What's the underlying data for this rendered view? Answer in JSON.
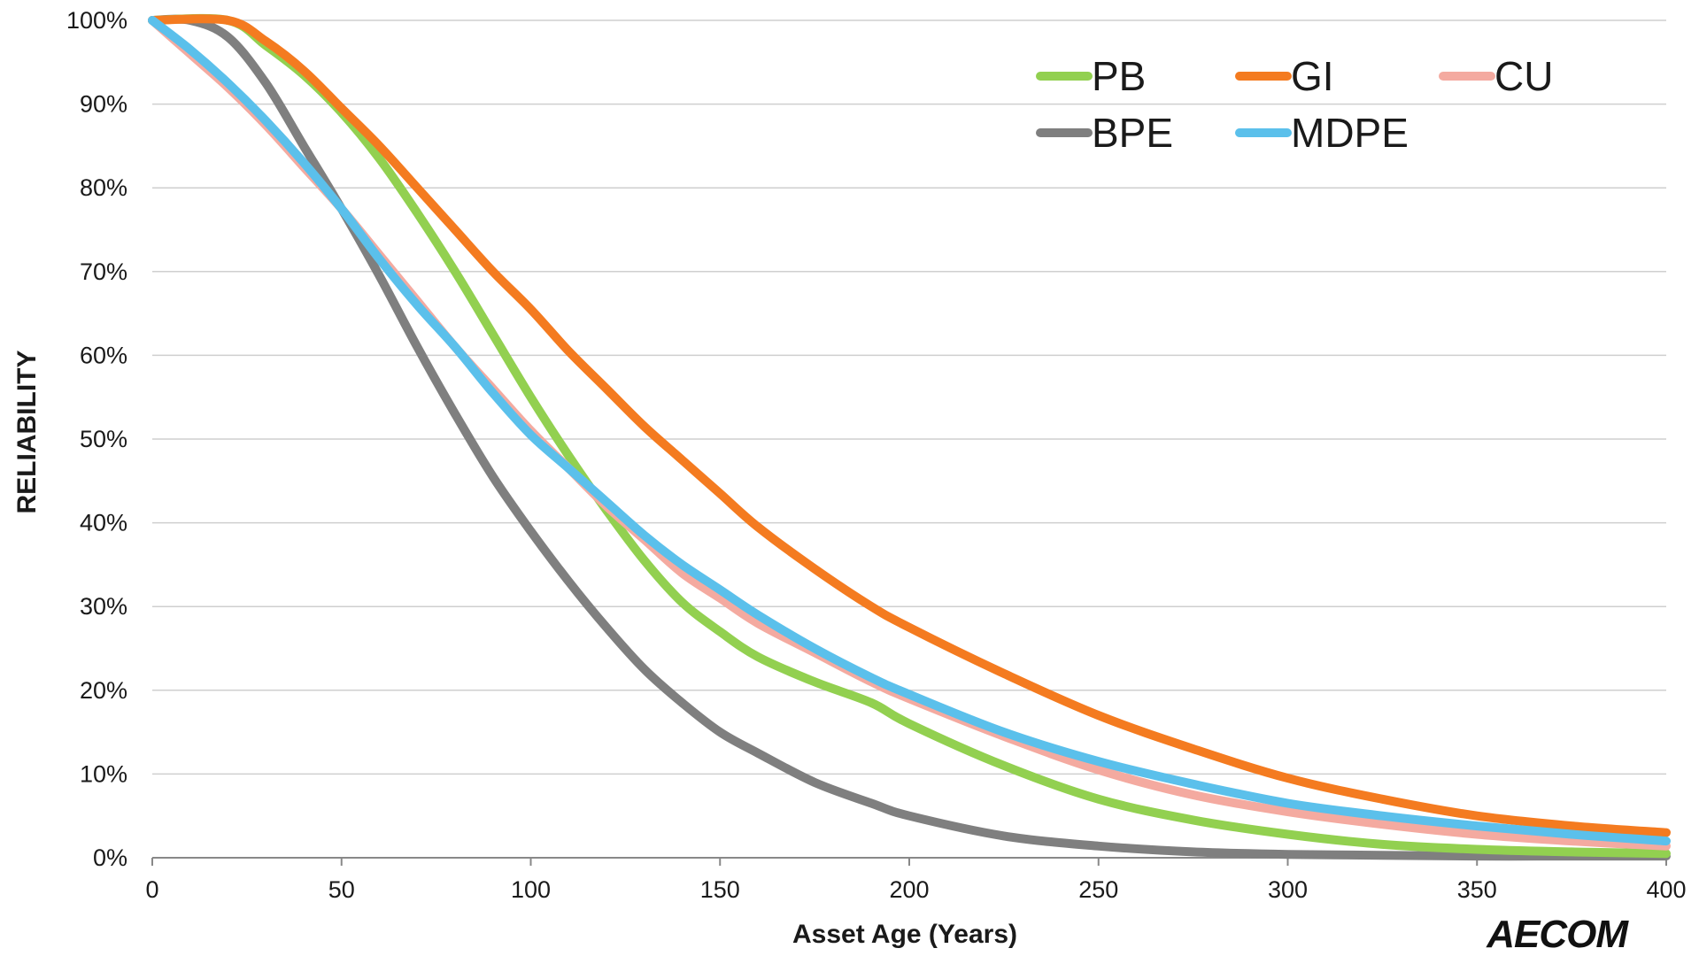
{
  "logo": {
    "text": "AECOM"
  },
  "chart_data": {
    "type": "line",
    "title": "",
    "xlabel": "Asset Age (Years)",
    "ylabel": "RELIABILITY",
    "xlim": [
      0,
      400
    ],
    "ylim": [
      0,
      100
    ],
    "x_ticks": [
      0,
      50,
      100,
      150,
      200,
      250,
      300,
      350,
      400
    ],
    "x_tick_labels": [
      "0",
      "50",
      "100",
      "150",
      "200",
      "250",
      "300",
      "350",
      "400"
    ],
    "y_ticks": [
      0,
      10,
      20,
      30,
      40,
      50,
      60,
      70,
      80,
      90,
      100
    ],
    "y_tick_labels": [
      "0%",
      "10%",
      "20%",
      "30%",
      "40%",
      "50%",
      "60%",
      "70%",
      "80%",
      "90%",
      "100%"
    ],
    "grid": "horizontal",
    "legend_position": "top-right",
    "series": [
      {
        "name": "PB",
        "color": "#92d050",
        "points": [
          [
            0,
            100
          ],
          [
            20,
            100
          ],
          [
            30,
            97
          ],
          [
            40,
            93.5
          ],
          [
            50,
            89
          ],
          [
            60,
            83.5
          ],
          [
            70,
            77
          ],
          [
            80,
            70
          ],
          [
            90,
            62.5
          ],
          [
            100,
            55
          ],
          [
            110,
            48
          ],
          [
            120,
            41.5
          ],
          [
            130,
            35.5
          ],
          [
            140,
            30.5
          ],
          [
            150,
            27
          ],
          [
            160,
            24
          ],
          [
            175,
            21
          ],
          [
            190,
            18.5
          ],
          [
            200,
            16
          ],
          [
            225,
            11
          ],
          [
            250,
            7
          ],
          [
            275,
            4.5
          ],
          [
            300,
            2.8
          ],
          [
            325,
            1.6
          ],
          [
            350,
            1
          ],
          [
            375,
            0.7
          ],
          [
            400,
            0.5
          ]
        ]
      },
      {
        "name": "GI",
        "color": "#f47b20",
        "points": [
          [
            0,
            100
          ],
          [
            20,
            100
          ],
          [
            30,
            97.5
          ],
          [
            40,
            94
          ],
          [
            50,
            89.5
          ],
          [
            60,
            85
          ],
          [
            70,
            80
          ],
          [
            80,
            75
          ],
          [
            90,
            70
          ],
          [
            100,
            65.5
          ],
          [
            110,
            60.5
          ],
          [
            120,
            56
          ],
          [
            130,
            51.5
          ],
          [
            140,
            47.5
          ],
          [
            150,
            43.5
          ],
          [
            160,
            39.5
          ],
          [
            175,
            34.5
          ],
          [
            190,
            30
          ],
          [
            200,
            27.5
          ],
          [
            225,
            22
          ],
          [
            250,
            17
          ],
          [
            275,
            13
          ],
          [
            300,
            9.5
          ],
          [
            325,
            7
          ],
          [
            350,
            5
          ],
          [
            375,
            3.8
          ],
          [
            400,
            3
          ]
        ]
      },
      {
        "name": "CU",
        "color": "#f4aaa0",
        "points": [
          [
            0,
            100
          ],
          [
            10,
            96
          ],
          [
            20,
            92
          ],
          [
            30,
            87.5
          ],
          [
            40,
            82.5
          ],
          [
            50,
            77.5
          ],
          [
            60,
            72
          ],
          [
            70,
            66.5
          ],
          [
            80,
            61
          ],
          [
            90,
            56
          ],
          [
            100,
            51
          ],
          [
            110,
            46.5
          ],
          [
            120,
            42
          ],
          [
            130,
            38
          ],
          [
            140,
            34
          ],
          [
            150,
            31
          ],
          [
            160,
            28
          ],
          [
            175,
            24.5
          ],
          [
            190,
            21
          ],
          [
            200,
            19
          ],
          [
            225,
            14.5
          ],
          [
            250,
            10.5
          ],
          [
            275,
            7.5
          ],
          [
            300,
            5.5
          ],
          [
            325,
            4
          ],
          [
            350,
            2.8
          ],
          [
            375,
            2
          ],
          [
            400,
            1.4
          ]
        ]
      },
      {
        "name": "BPE",
        "color": "#7f7f7f",
        "points": [
          [
            0,
            100
          ],
          [
            10,
            100
          ],
          [
            20,
            98
          ],
          [
            30,
            92.5
          ],
          [
            40,
            85
          ],
          [
            50,
            77.5
          ],
          [
            60,
            69.5
          ],
          [
            70,
            61
          ],
          [
            80,
            53
          ],
          [
            90,
            45.5
          ],
          [
            100,
            39
          ],
          [
            110,
            33
          ],
          [
            120,
            27.5
          ],
          [
            130,
            22.5
          ],
          [
            140,
            18.5
          ],
          [
            150,
            15
          ],
          [
            160,
            12.5
          ],
          [
            175,
            9
          ],
          [
            190,
            6.5
          ],
          [
            200,
            5
          ],
          [
            225,
            2.6
          ],
          [
            250,
            1.4
          ],
          [
            275,
            0.7
          ],
          [
            300,
            0.4
          ],
          [
            325,
            0.3
          ],
          [
            350,
            0.2
          ],
          [
            375,
            0.2
          ],
          [
            400,
            0.2
          ]
        ]
      },
      {
        "name": "MDPE",
        "color": "#5bc0eb",
        "points": [
          [
            0,
            100
          ],
          [
            10,
            96.5
          ],
          [
            20,
            92.5
          ],
          [
            30,
            88
          ],
          [
            40,
            83
          ],
          [
            50,
            77.5
          ],
          [
            60,
            71.5
          ],
          [
            70,
            66
          ],
          [
            80,
            61
          ],
          [
            90,
            55.5
          ],
          [
            100,
            50.5
          ],
          [
            110,
            46.5
          ],
          [
            120,
            42.5
          ],
          [
            130,
            38.5
          ],
          [
            140,
            35
          ],
          [
            150,
            32
          ],
          [
            160,
            29
          ],
          [
            175,
            25
          ],
          [
            190,
            21.5
          ],
          [
            200,
            19.5
          ],
          [
            225,
            15
          ],
          [
            250,
            11.5
          ],
          [
            275,
            8.8
          ],
          [
            300,
            6.5
          ],
          [
            325,
            5
          ],
          [
            350,
            3.8
          ],
          [
            375,
            2.8
          ],
          [
            400,
            2
          ]
        ]
      }
    ]
  }
}
